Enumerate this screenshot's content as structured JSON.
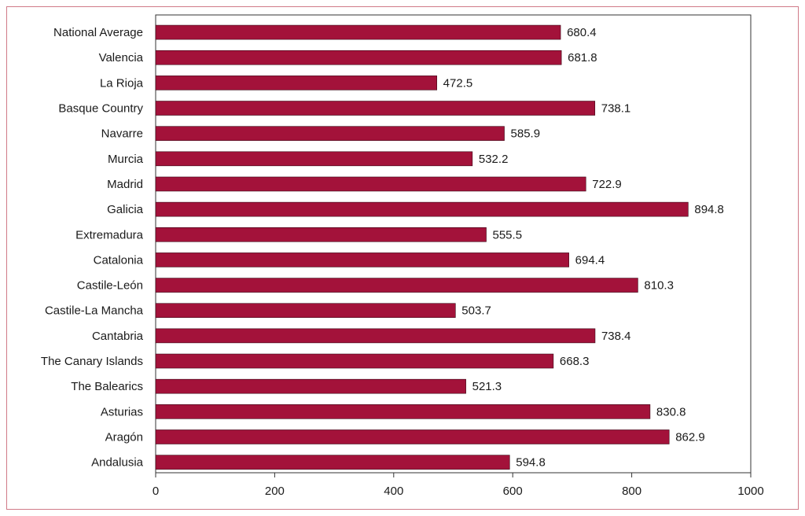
{
  "chart_data": {
    "type": "bar",
    "orientation": "horizontal",
    "categories": [
      "National Average",
      "Valencia",
      "La Rioja",
      "Basque Country",
      "Navarre",
      "Murcia",
      "Madrid",
      "Galicia",
      "Extremadura",
      "Catalonia",
      "Castile-León",
      "Castile-La Mancha",
      "Cantabria",
      "The Canary Islands",
      "The Balearics",
      "Asturias",
      "Aragón",
      "Andalusia"
    ],
    "values": [
      680.4,
      681.8,
      472.5,
      738.1,
      585.9,
      532.2,
      722.9,
      894.8,
      555.5,
      694.4,
      810.3,
      503.7,
      738.4,
      668.3,
      521.3,
      830.8,
      862.9,
      594.8
    ],
    "value_labels": [
      "680.4",
      "681.8",
      "472.5",
      "738.1",
      "585.9",
      "532.2",
      "722.9",
      "894.8",
      "555.5",
      "694.4",
      "810.3",
      "503.7",
      "738.4",
      "668.3",
      "521.3",
      "830.8",
      "862.9",
      "594.8"
    ],
    "xlim": [
      0,
      1000
    ],
    "xticks": [
      "0",
      "200",
      "400",
      "600",
      "800",
      "1000"
    ],
    "grid": false,
    "bar_color": "#a3123a",
    "frame_color": "#d07a88"
  }
}
